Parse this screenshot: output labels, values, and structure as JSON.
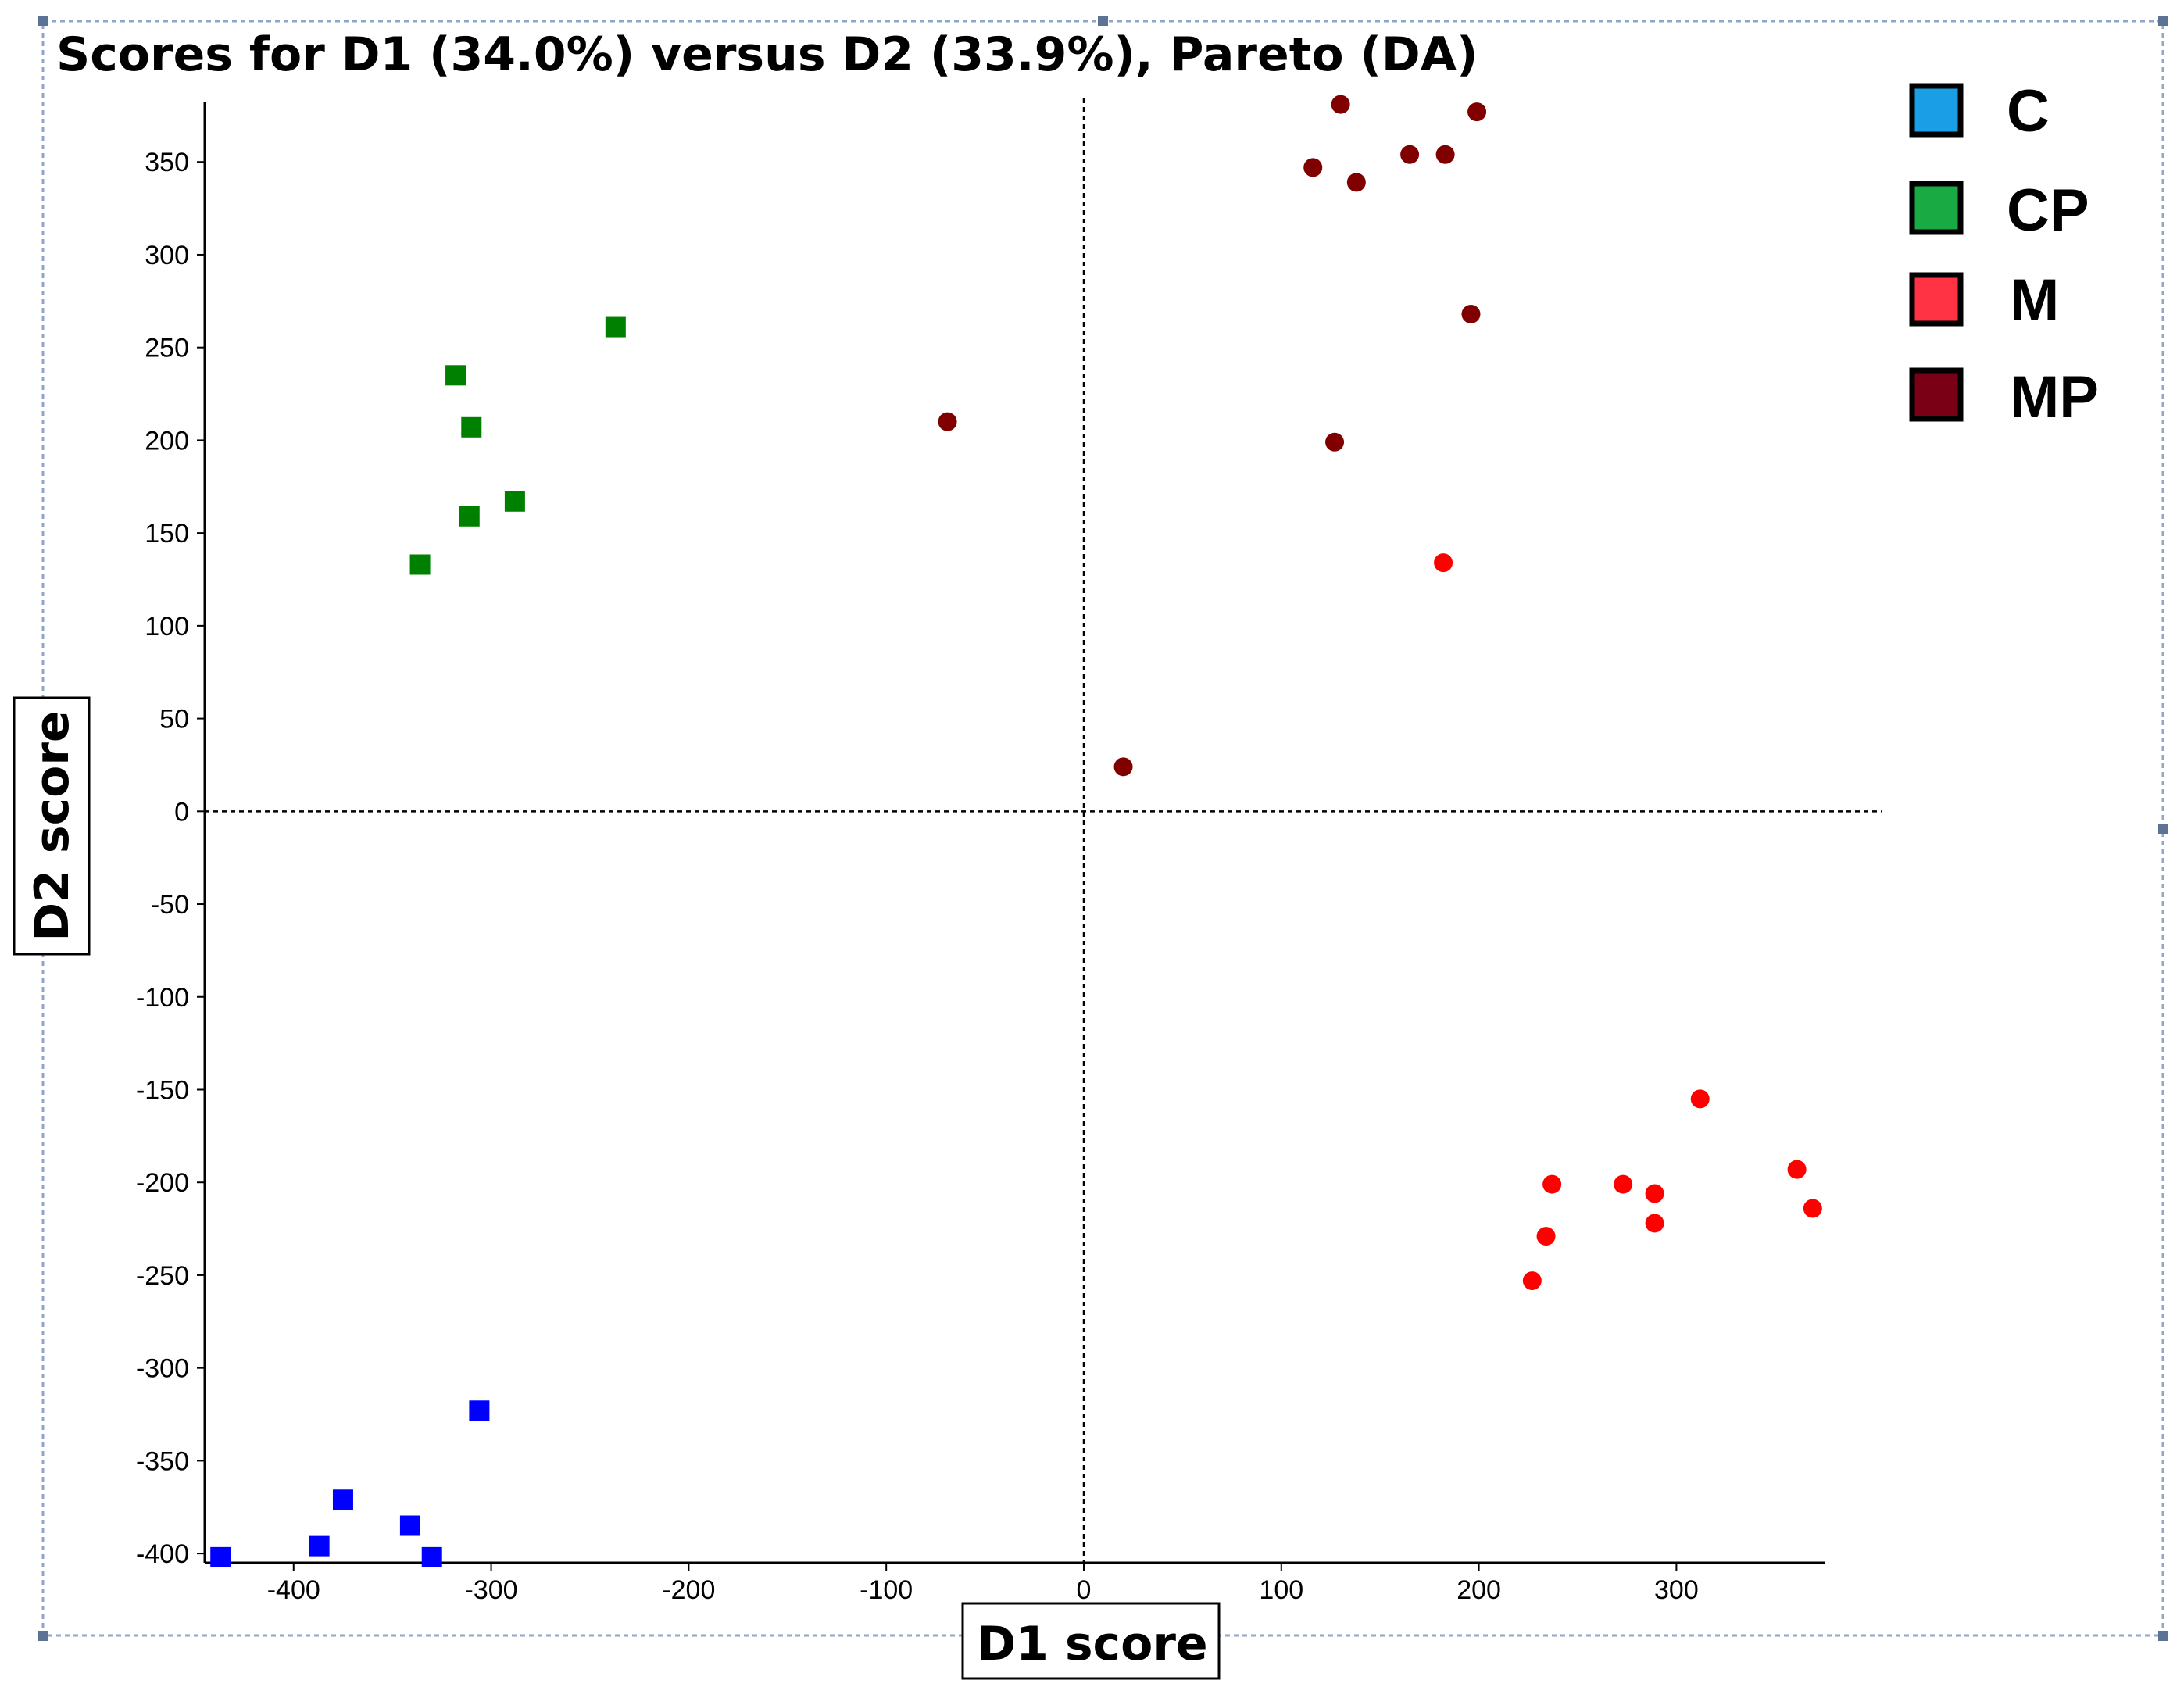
{
  "chart_data": {
    "type": "scatter",
    "title": "Scores for D1 (34.0%) versus D2 (33.9%), Pareto (DA)",
    "xlabel": "D1 score",
    "ylabel": "D2 score",
    "xlim": [
      -445,
      375
    ],
    "ylim": [
      -405,
      380
    ],
    "x_ticks": [
      -400,
      -300,
      -200,
      -100,
      0,
      100,
      200,
      300
    ],
    "y_ticks": [
      350,
      300,
      250,
      200,
      150,
      100,
      50,
      0,
      -50,
      -100,
      -150,
      -200,
      -250,
      -300,
      -350,
      -400
    ],
    "x_tick_labels": [
      "-400",
      "-300",
      "-200",
      "-100",
      "0",
      "100",
      "200",
      "300"
    ],
    "y_tick_labels": [
      "350",
      "300",
      "250",
      "200",
      "150",
      "100",
      "50",
      "0",
      "-50",
      "-100",
      "-150",
      "-200",
      "-250",
      "-300",
      "-350",
      "-400"
    ],
    "grid": false,
    "zero_lines": true,
    "legend_position": "top-right",
    "series": [
      {
        "name": "C",
        "marker": "square",
        "color": "#0000ff",
        "legend_color": "#1a9fe6",
        "points": [
          [
            -437,
            -402
          ],
          [
            -387,
            -396
          ],
          [
            -375,
            -371
          ],
          [
            -341,
            -385
          ],
          [
            -330,
            -402
          ],
          [
            -306,
            -323
          ]
        ]
      },
      {
        "name": "CP",
        "marker": "square",
        "color": "#008000",
        "legend_color": "#1aaa44",
        "points": [
          [
            -336,
            133
          ],
          [
            -318,
            235
          ],
          [
            -310,
            207
          ],
          [
            -311,
            159
          ],
          [
            -288,
            167
          ],
          [
            -237,
            261
          ]
        ]
      },
      {
        "name": "M",
        "marker": "circle",
        "color": "#ff0000",
        "legend_color": "#ff3344",
        "points": [
          [
            182,
            134
          ],
          [
            312,
            -155
          ],
          [
            361,
            -193
          ],
          [
            369,
            -214
          ],
          [
            237,
            -201
          ],
          [
            273,
            -201
          ],
          [
            289,
            -206
          ],
          [
            289,
            -222
          ],
          [
            234,
            -229
          ],
          [
            227,
            -253
          ]
        ]
      },
      {
        "name": "MP",
        "marker": "circle",
        "color": "#800000",
        "legend_color": "#7a0015",
        "points": [
          [
            130,
            381
          ],
          [
            199,
            377
          ],
          [
            116,
            347
          ],
          [
            138,
            339
          ],
          [
            165,
            354
          ],
          [
            183,
            354
          ],
          [
            196,
            268
          ],
          [
            127,
            199
          ],
          [
            -69,
            210
          ],
          [
            20,
            24
          ]
        ]
      }
    ]
  }
}
